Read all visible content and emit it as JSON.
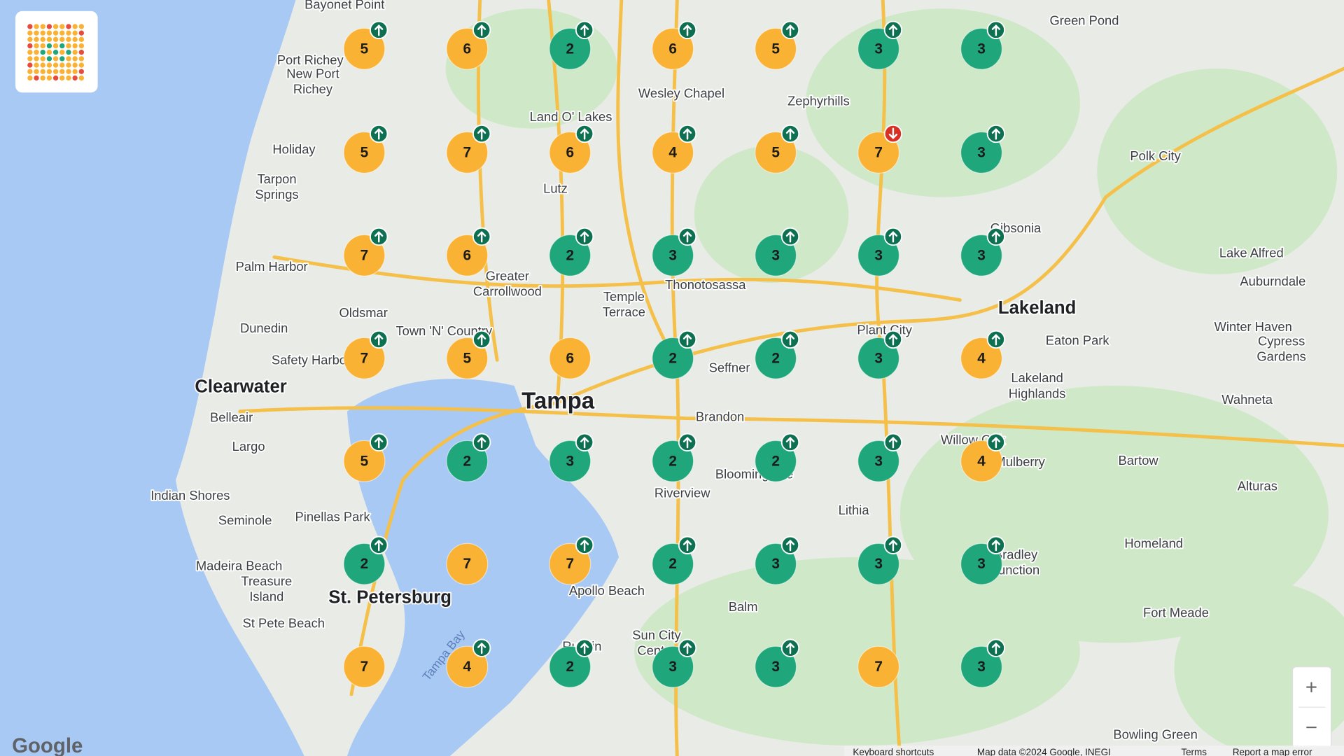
{
  "map": {
    "places": [
      "Bayonet Point",
      "Port Richey",
      "New Port\nRichey",
      "Wesley Chapel",
      "Zephyrhills",
      "Green Pond",
      "Land O' Lakes",
      "Holiday",
      "Polk City",
      "Lutz",
      "Tarpon\nSprings",
      "Gibsonia",
      "Palm Harbor",
      "Greater\nCarrollwood",
      "Thonotosassa",
      "Lake Alfred",
      "Auburndale",
      "Oldsmar",
      "Temple\nTerrace",
      "Lakeland",
      "Dunedin",
      "Town 'N' Country",
      "Plant City",
      "Winter Haven",
      "Safety Harbor",
      "Eaton Park",
      "Seffner",
      "Cypress\nGardens",
      "Clearwater",
      "Tampa",
      "Lakeland\nHighlands",
      "Brandon",
      "Wahneta",
      "Belleair",
      "Largo",
      "Willow Oak",
      "Mulberry",
      "Bartow",
      "Bloomingdale",
      "Indian Shores",
      "Riverview",
      "Alturas",
      "Seminole",
      "Pinellas Park",
      "Lithia",
      "Homeland",
      "Madeira Beach",
      "Bradley\nJunction",
      "Treasure\nIsland",
      "St. Petersburg",
      "Apollo Beach",
      "Balm",
      "Fort Meade",
      "St Pete Beach",
      "Tampa Bay",
      "Ruskin",
      "Sun City\nCenter",
      "Bowling Green"
    ],
    "markers": [
      [
        {
          "rank": 5,
          "color": "#f9b234",
          "trend": "up"
        },
        {
          "rank": 6,
          "color": "#f9b234",
          "trend": "up"
        },
        {
          "rank": 2,
          "color": "#1fa67a",
          "trend": "up"
        },
        {
          "rank": 6,
          "color": "#f9b234",
          "trend": "up"
        },
        {
          "rank": 5,
          "color": "#f9b234",
          "trend": "up"
        },
        {
          "rank": 3,
          "color": "#1fa67a",
          "trend": "up"
        },
        {
          "rank": 3,
          "color": "#1fa67a",
          "trend": "up"
        }
      ],
      [
        {
          "rank": 5,
          "color": "#f9b234",
          "trend": "up"
        },
        {
          "rank": 7,
          "color": "#f9b234",
          "trend": "up"
        },
        {
          "rank": 6,
          "color": "#f9b234",
          "trend": "up"
        },
        {
          "rank": 4,
          "color": "#f9b234",
          "trend": "up"
        },
        {
          "rank": 5,
          "color": "#f9b234",
          "trend": "up"
        },
        {
          "rank": 7,
          "color": "#f9b234",
          "trend": "down"
        },
        {
          "rank": 3,
          "color": "#1fa67a",
          "trend": "up"
        }
      ],
      [
        {
          "rank": 7,
          "color": "#f9b234",
          "trend": "up"
        },
        {
          "rank": 6,
          "color": "#f9b234",
          "trend": "up"
        },
        {
          "rank": 2,
          "color": "#1fa67a",
          "trend": "up"
        },
        {
          "rank": 3,
          "color": "#1fa67a",
          "trend": "up"
        },
        {
          "rank": 3,
          "color": "#1fa67a",
          "trend": "up"
        },
        {
          "rank": 3,
          "color": "#1fa67a",
          "trend": "up"
        },
        {
          "rank": 3,
          "color": "#1fa67a",
          "trend": "up"
        }
      ],
      [
        {
          "rank": 7,
          "color": "#f9b234",
          "trend": "up"
        },
        {
          "rank": 5,
          "color": "#f9b234",
          "trend": "up"
        },
        {
          "rank": 6,
          "color": "#f9b234",
          "trend": null
        },
        {
          "rank": 2,
          "color": "#1fa67a",
          "trend": "up"
        },
        {
          "rank": 2,
          "color": "#1fa67a",
          "trend": "up"
        },
        {
          "rank": 3,
          "color": "#1fa67a",
          "trend": "up"
        },
        {
          "rank": 4,
          "color": "#f9b234",
          "trend": "up"
        }
      ],
      [
        {
          "rank": 5,
          "color": "#f9b234",
          "trend": "up"
        },
        {
          "rank": 2,
          "color": "#1fa67a",
          "trend": "up"
        },
        {
          "rank": 3,
          "color": "#1fa67a",
          "trend": "up"
        },
        {
          "rank": 2,
          "color": "#1fa67a",
          "trend": "up"
        },
        {
          "rank": 2,
          "color": "#1fa67a",
          "trend": "up"
        },
        {
          "rank": 3,
          "color": "#1fa67a",
          "trend": "up"
        },
        {
          "rank": 4,
          "color": "#f9b234",
          "trend": "up"
        }
      ],
      [
        {
          "rank": 2,
          "color": "#1fa67a",
          "trend": "up"
        },
        {
          "rank": 7,
          "color": "#f9b234",
          "trend": null
        },
        {
          "rank": 7,
          "color": "#f9b234",
          "trend": "up"
        },
        {
          "rank": 2,
          "color": "#1fa67a",
          "trend": "up"
        },
        {
          "rank": 3,
          "color": "#1fa67a",
          "trend": "up"
        },
        {
          "rank": 3,
          "color": "#1fa67a",
          "trend": "up"
        },
        {
          "rank": 3,
          "color": "#1fa67a",
          "trend": "up"
        }
      ],
      [
        {
          "rank": 7,
          "color": "#f9b234",
          "trend": null
        },
        {
          "rank": 4,
          "color": "#f9b234",
          "trend": "up"
        },
        {
          "rank": 2,
          "color": "#1fa67a",
          "trend": "up"
        },
        {
          "rank": 3,
          "color": "#1fa67a",
          "trend": "up"
        },
        {
          "rank": 3,
          "color": "#1fa67a",
          "trend": "up"
        },
        {
          "rank": 7,
          "color": "#f9b234",
          "trend": null
        },
        {
          "rank": 3,
          "color": "#1fa67a",
          "trend": "up"
        }
      ]
    ],
    "logo": "Google",
    "zoom": {
      "in": "+",
      "out": "−"
    },
    "footer": [
      "Keyboard shortcuts",
      "Map data ©2024 Google, INEGI",
      "Terms",
      "Report a map error"
    ]
  }
}
